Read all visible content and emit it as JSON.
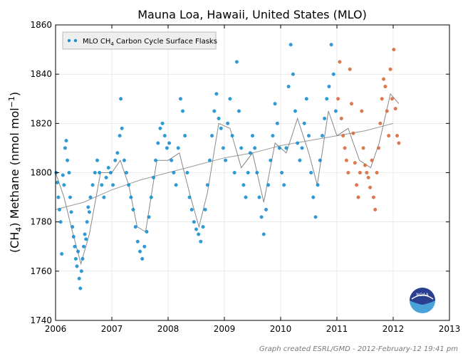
{
  "chart_data": {
    "type": "scatter",
    "title": "Mauna Loa, Hawaii, United States (MLO)",
    "ylabel_parts": [
      "(CH",
      "4",
      ") Methane (nmol mol",
      "−1",
      ")"
    ],
    "xlim": [
      2006,
      2013
    ],
    "ylim": [
      1740,
      1860
    ],
    "x_ticks": [
      2006,
      2007,
      2008,
      2009,
      2010,
      2011,
      2012,
      2013
    ],
    "y_ticks": [
      1740,
      1760,
      1780,
      1800,
      1820,
      1840,
      1860
    ],
    "grid": true,
    "legend": {
      "placement": "top-left",
      "label_parts": [
        "MLO CH",
        "4",
        " Carbon Cycle Surface Flasks"
      ]
    },
    "series": [
      {
        "kind": "flask",
        "color": "#1a8fcf",
        "points": [
          [
            2006.01,
            1800
          ],
          [
            2006.03,
            1796
          ],
          [
            2006.05,
            1790
          ],
          [
            2006.07,
            1785
          ],
          [
            2006.09,
            1780
          ],
          [
            2006.11,
            1767
          ],
          [
            2006.13,
            1799
          ],
          [
            2006.15,
            1795
          ],
          [
            2006.17,
            1810
          ],
          [
            2006.19,
            1813
          ],
          [
            2006.21,
            1805
          ],
          [
            2006.24,
            1800
          ],
          [
            2006.26,
            1790
          ],
          [
            2006.28,
            1784
          ],
          [
            2006.3,
            1778
          ],
          [
            2006.32,
            1774
          ],
          [
            2006.34,
            1770
          ],
          [
            2006.36,
            1765
          ],
          [
            2006.38,
            1762
          ],
          [
            2006.4,
            1768
          ],
          [
            2006.42,
            1757
          ],
          [
            2006.44,
            1753
          ],
          [
            2006.46,
            1760
          ],
          [
            2006.48,
            1765
          ],
          [
            2006.5,
            1770
          ],
          [
            2006.52,
            1775
          ],
          [
            2006.54,
            1773
          ],
          [
            2006.56,
            1780
          ],
          [
            2006.58,
            1786
          ],
          [
            2006.6,
            1784
          ],
          [
            2006.62,
            1790
          ],
          [
            2006.66,
            1795
          ],
          [
            2006.7,
            1800
          ],
          [
            2006.74,
            1805
          ],
          [
            2006.78,
            1800
          ],
          [
            2006.82,
            1795
          ],
          [
            2006.86,
            1790
          ],
          [
            2006.9,
            1798
          ],
          [
            2006.94,
            1802
          ],
          [
            2006.98,
            1800
          ],
          [
            2007.02,
            1795
          ],
          [
            2007.06,
            1805
          ],
          [
            2007.1,
            1808
          ],
          [
            2007.14,
            1815
          ],
          [
            2007.16,
            1830
          ],
          [
            2007.18,
            1818
          ],
          [
            2007.22,
            1805
          ],
          [
            2007.26,
            1800
          ],
          [
            2007.3,
            1795
          ],
          [
            2007.34,
            1790
          ],
          [
            2007.38,
            1785
          ],
          [
            2007.42,
            1778
          ],
          [
            2007.46,
            1772
          ],
          [
            2007.5,
            1768
          ],
          [
            2007.54,
            1765
          ],
          [
            2007.58,
            1770
          ],
          [
            2007.62,
            1776
          ],
          [
            2007.66,
            1782
          ],
          [
            2007.7,
            1790
          ],
          [
            2007.74,
            1798
          ],
          [
            2007.78,
            1805
          ],
          [
            2007.82,
            1812
          ],
          [
            2007.86,
            1818
          ],
          [
            2007.9,
            1820
          ],
          [
            2007.94,
            1815
          ],
          [
            2007.98,
            1810
          ],
          [
            2008.02,
            1812
          ],
          [
            2008.06,
            1805
          ],
          [
            2008.1,
            1800
          ],
          [
            2008.14,
            1795
          ],
          [
            2008.18,
            1810
          ],
          [
            2008.22,
            1830
          ],
          [
            2008.26,
            1825
          ],
          [
            2008.3,
            1815
          ],
          [
            2008.34,
            1800
          ],
          [
            2008.38,
            1790
          ],
          [
            2008.42,
            1785
          ],
          [
            2008.46,
            1780
          ],
          [
            2008.5,
            1777
          ],
          [
            2008.54,
            1775
          ],
          [
            2008.58,
            1772
          ],
          [
            2008.62,
            1778
          ],
          [
            2008.66,
            1785
          ],
          [
            2008.7,
            1795
          ],
          [
            2008.74,
            1805
          ],
          [
            2008.78,
            1815
          ],
          [
            2008.82,
            1825
          ],
          [
            2008.86,
            1832
          ],
          [
            2008.9,
            1822
          ],
          [
            2008.94,
            1818
          ],
          [
            2008.98,
            1810
          ],
          [
            2009.02,
            1805
          ],
          [
            2009.06,
            1820
          ],
          [
            2009.1,
            1830
          ],
          [
            2009.14,
            1815
          ],
          [
            2009.18,
            1800
          ],
          [
            2009.22,
            1845
          ],
          [
            2009.26,
            1825
          ],
          [
            2009.3,
            1810
          ],
          [
            2009.34,
            1795
          ],
          [
            2009.38,
            1790
          ],
          [
            2009.42,
            1800
          ],
          [
            2009.46,
            1808
          ],
          [
            2009.5,
            1815
          ],
          [
            2009.54,
            1810
          ],
          [
            2009.58,
            1800
          ],
          [
            2009.62,
            1790
          ],
          [
            2009.66,
            1782
          ],
          [
            2009.7,
            1775
          ],
          [
            2009.74,
            1785
          ],
          [
            2009.78,
            1795
          ],
          [
            2009.82,
            1805
          ],
          [
            2009.86,
            1815
          ],
          [
            2009.9,
            1828
          ],
          [
            2009.94,
            1820
          ],
          [
            2009.98,
            1810
          ],
          [
            2010.02,
            1800
          ],
          [
            2010.06,
            1795
          ],
          [
            2010.1,
            1810
          ],
          [
            2010.14,
            1835
          ],
          [
            2010.18,
            1852
          ],
          [
            2010.22,
            1840
          ],
          [
            2010.26,
            1825
          ],
          [
            2010.3,
            1812
          ],
          [
            2010.34,
            1805
          ],
          [
            2010.38,
            1810
          ],
          [
            2010.42,
            1820
          ],
          [
            2010.46,
            1830
          ],
          [
            2010.5,
            1815
          ],
          [
            2010.54,
            1800
          ],
          [
            2010.58,
            1790
          ],
          [
            2010.62,
            1782
          ],
          [
            2010.66,
            1795
          ],
          [
            2010.7,
            1805
          ],
          [
            2010.74,
            1815
          ],
          [
            2010.78,
            1822
          ],
          [
            2010.82,
            1830
          ],
          [
            2010.86,
            1835
          ],
          [
            2010.9,
            1852
          ],
          [
            2010.94,
            1840
          ],
          [
            2010.98,
            1825
          ]
        ]
      },
      {
        "kind": "preliminary",
        "color": "#d86a3c",
        "points": [
          [
            2011.02,
            1830
          ],
          [
            2011.05,
            1845
          ],
          [
            2011.08,
            1822
          ],
          [
            2011.11,
            1815
          ],
          [
            2011.14,
            1810
          ],
          [
            2011.17,
            1805
          ],
          [
            2011.2,
            1800
          ],
          [
            2011.23,
            1842
          ],
          [
            2011.26,
            1828
          ],
          [
            2011.29,
            1816
          ],
          [
            2011.32,
            1804
          ],
          [
            2011.35,
            1795
          ],
          [
            2011.38,
            1790
          ],
          [
            2011.41,
            1800
          ],
          [
            2011.44,
            1825
          ],
          [
            2011.47,
            1810
          ],
          [
            2011.5,
            1803
          ],
          [
            2011.53,
            1800
          ],
          [
            2011.56,
            1798
          ],
          [
            2011.59,
            1794
          ],
          [
            2011.62,
            1805
          ],
          [
            2011.65,
            1790
          ],
          [
            2011.68,
            1785
          ],
          [
            2011.71,
            1800
          ],
          [
            2011.74,
            1810
          ],
          [
            2011.77,
            1820
          ],
          [
            2011.8,
            1830
          ],
          [
            2011.83,
            1838
          ],
          [
            2011.86,
            1835
          ],
          [
            2011.89,
            1825
          ],
          [
            2011.92,
            1815
          ],
          [
            2011.95,
            1842
          ],
          [
            2011.98,
            1830
          ],
          [
            2012.01,
            1850
          ],
          [
            2012.04,
            1826
          ],
          [
            2012.07,
            1815
          ],
          [
            2012.1,
            1812
          ]
        ]
      }
    ],
    "smooth_curve": [
      [
        2006.0,
        1800
      ],
      [
        2006.15,
        1790
      ],
      [
        2006.3,
        1776
      ],
      [
        2006.45,
        1763
      ],
      [
        2006.6,
        1775
      ],
      [
        2006.8,
        1800
      ],
      [
        2007.0,
        1800
      ],
      [
        2007.15,
        1805
      ],
      [
        2007.3,
        1795
      ],
      [
        2007.45,
        1778
      ],
      [
        2007.6,
        1776
      ],
      [
        2007.8,
        1805
      ],
      [
        2008.0,
        1805
      ],
      [
        2008.2,
        1808
      ],
      [
        2008.4,
        1790
      ],
      [
        2008.55,
        1778
      ],
      [
        2008.7,
        1792
      ],
      [
        2008.9,
        1820
      ],
      [
        2009.1,
        1818
      ],
      [
        2009.3,
        1802
      ],
      [
        2009.5,
        1808
      ],
      [
        2009.7,
        1788
      ],
      [
        2009.9,
        1812
      ],
      [
        2010.1,
        1808
      ],
      [
        2010.3,
        1822
      ],
      [
        2010.5,
        1808
      ],
      [
        2010.65,
        1795
      ],
      [
        2010.85,
        1825
      ],
      [
        2011.0,
        1815
      ],
      [
        2011.2,
        1818
      ],
      [
        2011.4,
        1805
      ],
      [
        2011.6,
        1802
      ],
      [
        2011.75,
        1812
      ],
      [
        2011.95,
        1832
      ],
      [
        2012.1,
        1828
      ]
    ],
    "trend_curve": [
      [
        2006.0,
        1785
      ],
      [
        2006.5,
        1788
      ],
      [
        2007.0,
        1793
      ],
      [
        2007.5,
        1797
      ],
      [
        2008.0,
        1800
      ],
      [
        2008.5,
        1803
      ],
      [
        2009.0,
        1806
      ],
      [
        2009.5,
        1808
      ],
      [
        2010.0,
        1811
      ],
      [
        2010.5,
        1813
      ],
      [
        2011.0,
        1815
      ],
      [
        2011.5,
        1817
      ],
      [
        2012.0,
        1820
      ]
    ],
    "logo_text": "NOAA",
    "credit": "Graph created ESRL/GMD - 2012-February-12 19:41 pm"
  }
}
